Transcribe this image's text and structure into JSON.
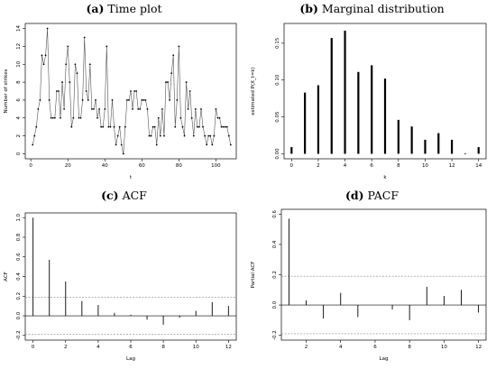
{
  "panels": {
    "a": {
      "letter": "(a)",
      "name": "Time plot"
    },
    "b": {
      "letter": "(b)",
      "name": "Marginal distribution"
    },
    "c": {
      "letter": "(c)",
      "name": "ACF"
    },
    "d": {
      "letter": "(d)",
      "name": "PACF"
    }
  },
  "chart_data": [
    {
      "id": "a",
      "type": "line",
      "title": "Time plot",
      "xlabel": "t",
      "ylabel": "Number of strikes",
      "xlim": [
        0,
        108
      ],
      "ylim": [
        0,
        14
      ],
      "xticks": [
        "0",
        "20",
        "40",
        "60",
        "80",
        "100"
      ],
      "yticks": [
        "0",
        "2",
        "4",
        "6",
        "8",
        "10",
        "12",
        "14"
      ],
      "x": [
        1,
        2,
        3,
        4,
        5,
        6,
        7,
        8,
        9,
        10,
        11,
        12,
        13,
        14,
        15,
        16,
        17,
        18,
        19,
        20,
        21,
        22,
        23,
        24,
        25,
        26,
        27,
        28,
        29,
        30,
        31,
        32,
        33,
        34,
        35,
        36,
        37,
        38,
        39,
        40,
        41,
        42,
        43,
        44,
        45,
        46,
        47,
        48,
        49,
        50,
        51,
        52,
        53,
        54,
        55,
        56,
        57,
        58,
        59,
        60,
        61,
        62,
        63,
        64,
        65,
        66,
        67,
        68,
        69,
        70,
        71,
        72,
        73,
        74,
        75,
        76,
        77,
        78,
        79,
        80,
        81,
        82,
        83,
        84,
        85,
        86,
        87,
        88,
        89,
        90,
        91,
        92,
        93,
        94,
        95,
        96,
        97,
        98,
        99,
        100,
        101,
        102,
        103,
        104,
        105,
        106,
        107,
        108
      ],
      "y": [
        1,
        2,
        3,
        5,
        6,
        11,
        10,
        11,
        14,
        6,
        4,
        4,
        4,
        7,
        7,
        4,
        8,
        5,
        10,
        12,
        8,
        3,
        4,
        10,
        9,
        4,
        4,
        6,
        13,
        7,
        6,
        10,
        5,
        5,
        6,
        4,
        5,
        3,
        3,
        5,
        12,
        3,
        3,
        6,
        3,
        1,
        2,
        3,
        1,
        0,
        3,
        6,
        6,
        7,
        5,
        7,
        7,
        5,
        5,
        6,
        6,
        6,
        5,
        2,
        2,
        3,
        3,
        1,
        4,
        2,
        5,
        2,
        8,
        8,
        6,
        9,
        11,
        3,
        6,
        12,
        4,
        3,
        2,
        8,
        5,
        7,
        4,
        2,
        5,
        3,
        3,
        5,
        3,
        2,
        1,
        2,
        2,
        1,
        2,
        5,
        4,
        4,
        3,
        3,
        3,
        3,
        2,
        1
      ]
    },
    {
      "id": "b",
      "type": "bar",
      "title": "Marginal distribution",
      "xlabel": "k",
      "ylabel": "estimated P(X_t=k)",
      "xlim": [
        0,
        14
      ],
      "ylim": [
        0,
        0.17
      ],
      "xticks": [
        "0",
        "2",
        "4",
        "6",
        "8",
        "10",
        "12",
        "14"
      ],
      "yticks": [
        "0.00",
        "0.05",
        "0.10",
        "0.15"
      ],
      "categories": [
        0,
        1,
        2,
        3,
        4,
        5,
        6,
        7,
        8,
        9,
        10,
        11,
        12,
        13,
        14
      ],
      "values": [
        0.009,
        0.083,
        0.093,
        0.157,
        0.167,
        0.111,
        0.12,
        0.102,
        0.046,
        0.037,
        0.019,
        0.028,
        0.019,
        0.0,
        0.009
      ]
    },
    {
      "id": "c",
      "type": "bar",
      "title": "ACF",
      "xlabel": "Lag",
      "ylabel": "ACF",
      "xlim": [
        0,
        12
      ],
      "ylim": [
        -0.2,
        1.0
      ],
      "xticks": [
        "0",
        "2",
        "4",
        "6",
        "8",
        "10",
        "12"
      ],
      "yticks": [
        "-0.2",
        "0.0",
        "0.2",
        "0.4",
        "0.6",
        "0.8",
        "1.0"
      ],
      "categories": [
        0,
        1,
        2,
        3,
        4,
        5,
        6,
        7,
        8,
        9,
        10,
        11,
        12
      ],
      "values": [
        1.0,
        0.57,
        0.35,
        0.15,
        0.11,
        0.03,
        0.01,
        -0.04,
        -0.09,
        -0.02,
        0.05,
        0.14,
        0.1
      ],
      "confidence_band": 0.19
    },
    {
      "id": "d",
      "type": "bar",
      "title": "PACF",
      "xlabel": "Lag",
      "ylabel": "Partial ACF",
      "xlim": [
        1,
        12
      ],
      "ylim": [
        -0.2,
        0.6
      ],
      "xticks": [
        "2",
        "4",
        "6",
        "8",
        "10",
        "12"
      ],
      "yticks": [
        "-0.2",
        "0.0",
        "0.2",
        "0.4",
        "0.6"
      ],
      "categories": [
        1,
        2,
        3,
        4,
        5,
        6,
        7,
        8,
        9,
        10,
        11,
        12
      ],
      "values": [
        0.57,
        0.03,
        -0.09,
        0.08,
        -0.08,
        0.0,
        -0.03,
        -0.1,
        0.12,
        0.06,
        0.1,
        -0.05
      ],
      "confidence_band": 0.19
    }
  ]
}
